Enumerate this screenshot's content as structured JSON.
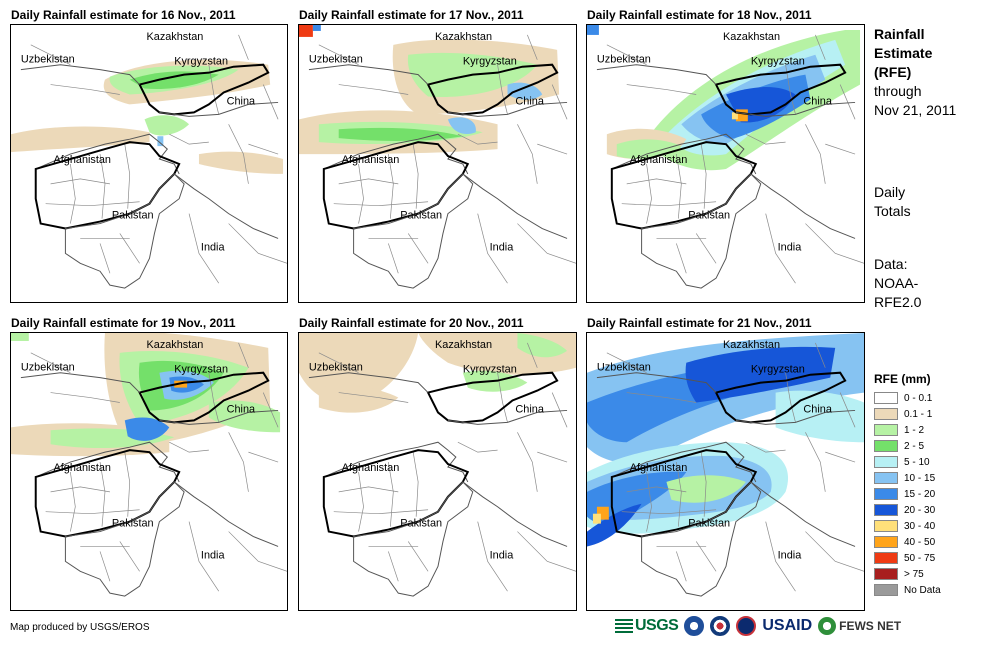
{
  "panels": [
    {
      "title": "Daily Rainfall estimate for 16 Nov., 2011"
    },
    {
      "title": "Daily Rainfall estimate for 17 Nov., 2011"
    },
    {
      "title": "Daily Rainfall estimate for 18 Nov., 2011"
    },
    {
      "title": "Daily Rainfall estimate for 19 Nov., 2011"
    },
    {
      "title": "Daily Rainfall estimate for 20 Nov., 2011"
    },
    {
      "title": "Daily Rainfall estimate for 21 Nov., 2011"
    }
  ],
  "map_labels": {
    "kazakhstan": "Kazakhstan",
    "uzbekistan": "Uzbekistan",
    "kyrgyzstan": "Kyrgyzstan",
    "china": "China",
    "afghanistan": "Afghanistan",
    "pakistan": "Pakistan",
    "india": "India"
  },
  "sidebar": {
    "title_lines": [
      "Rainfall",
      "Estimate",
      "(RFE)"
    ],
    "through_lines": [
      "through",
      "Nov 21, 2011"
    ],
    "period_lines": [
      "Daily",
      "Totals"
    ],
    "data_lines": [
      "Data:",
      "NOAA-",
      "RFE2.0"
    ]
  },
  "legend": {
    "title": "RFE (mm)",
    "items": [
      {
        "label": "0 - 0.1",
        "color": "#ffffff"
      },
      {
        "label": "0.1 - 1",
        "color": "#ecd9b9"
      },
      {
        "label": "1 - 2",
        "color": "#b6f2a4"
      },
      {
        "label": "2 - 5",
        "color": "#74e06a"
      },
      {
        "label": "5 - 10",
        "color": "#b7f0f4"
      },
      {
        "label": "10 - 15",
        "color": "#86c3f2"
      },
      {
        "label": "15 - 20",
        "color": "#3b8ae8"
      },
      {
        "label": "20 - 30",
        "color": "#1656d8"
      },
      {
        "label": "30 - 40",
        "color": "#ffe07a"
      },
      {
        "label": "40 - 50",
        "color": "#ffa41a"
      },
      {
        "label": "50 - 75",
        "color": "#ef3b14"
      },
      {
        "label": "> 75",
        "color": "#a81f1f"
      },
      {
        "label": "No Data",
        "color": "#9a9a9a"
      }
    ]
  },
  "credit": "Map produced by USGS/EROS",
  "logos": {
    "usgs": "USGS",
    "usaid": "USAID",
    "fews": "FEWS NET"
  }
}
